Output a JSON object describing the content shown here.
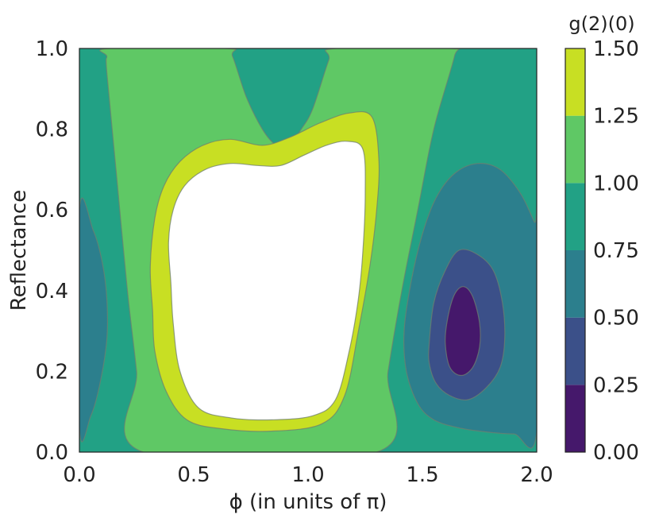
{
  "chart_data": {
    "type": "contour",
    "xlabel": "ϕ (in units of π)",
    "ylabel": "Reflectance",
    "xlim": [
      0.0,
      2.0
    ],
    "ylim": [
      0.0,
      1.0
    ],
    "x_ticks": [
      "0.0",
      "0.5",
      "1.0",
      "1.5",
      "2.0"
    ],
    "y_ticks": [
      "0.0",
      "0.2",
      "0.4",
      "0.6",
      "0.8",
      "1.0"
    ],
    "colorbar": {
      "title": "g(2)(0)",
      "tick_labels": [
        "0.00",
        "0.25",
        "0.50",
        "0.75",
        "1.00",
        "1.25",
        "1.50"
      ],
      "levels": [
        0.0,
        0.25,
        0.5,
        0.75,
        1.0,
        1.25,
        1.5
      ],
      "colors": [
        "#45186b",
        "#3b5089",
        "#2c7f8d",
        "#22a185",
        "#5fc865",
        "#c8df23"
      ],
      "over_color": "#ffffff"
    },
    "regions": [
      {
        "level_range": [
          0.75,
          1.0
        ],
        "points": [
          [
            0.0,
            0.0
          ],
          [
            2.0,
            0.0
          ],
          [
            2.0,
            1.0
          ],
          [
            0.0,
            1.0
          ]
        ]
      },
      {
        "level_range": [
          1.0,
          1.25
        ],
        "points": [
          [
            0.28,
            0.0
          ],
          [
            1.3,
            0.0
          ],
          [
            1.35,
            0.2
          ],
          [
            1.41,
            0.4
          ],
          [
            1.48,
            0.6
          ],
          [
            1.55,
            0.8
          ],
          [
            1.64,
            0.98
          ],
          [
            1.63,
            1.0
          ],
          [
            1.12,
            1.0
          ],
          [
            1.09,
            0.97
          ],
          [
            1.02,
            0.85
          ],
          [
            0.97,
            0.8
          ],
          [
            0.91,
            0.755
          ],
          [
            0.86,
            0.76
          ],
          [
            0.8,
            0.8
          ],
          [
            0.73,
            0.88
          ],
          [
            0.67,
            0.98
          ],
          [
            0.64,
            1.0
          ],
          [
            0.13,
            1.0
          ],
          [
            0.12,
            0.98
          ],
          [
            0.12,
            0.94
          ],
          [
            0.16,
            0.7
          ],
          [
            0.21,
            0.4
          ],
          [
            0.25,
            0.2
          ]
        ]
      },
      {
        "level_range": [
          1.25,
          1.5
        ],
        "points": [
          [
            0.32,
            0.35
          ],
          [
            0.31,
            0.46
          ],
          [
            0.33,
            0.58
          ],
          [
            0.37,
            0.66
          ],
          [
            0.44,
            0.72
          ],
          [
            0.54,
            0.76
          ],
          [
            0.66,
            0.775
          ],
          [
            0.8,
            0.76
          ],
          [
            0.92,
            0.78
          ],
          [
            1.05,
            0.815
          ],
          [
            1.18,
            0.84
          ],
          [
            1.28,
            0.83
          ],
          [
            1.31,
            0.72
          ],
          [
            1.3,
            0.6
          ],
          [
            1.27,
            0.46
          ],
          [
            1.22,
            0.3
          ],
          [
            1.16,
            0.14
          ],
          [
            1.06,
            0.07
          ],
          [
            0.84,
            0.052
          ],
          [
            0.62,
            0.058
          ],
          [
            0.47,
            0.08
          ],
          [
            0.38,
            0.15
          ],
          [
            0.33,
            0.25
          ]
        ]
      },
      {
        "level_range": [
          1.5,
          null
        ],
        "points": [
          [
            0.4,
            0.42
          ],
          [
            0.39,
            0.52
          ],
          [
            0.41,
            0.6
          ],
          [
            0.46,
            0.66
          ],
          [
            0.55,
            0.7
          ],
          [
            0.66,
            0.715
          ],
          [
            0.78,
            0.71
          ],
          [
            0.88,
            0.71
          ],
          [
            0.98,
            0.735
          ],
          [
            1.08,
            0.76
          ],
          [
            1.17,
            0.77
          ],
          [
            1.24,
            0.75
          ],
          [
            1.25,
            0.64
          ],
          [
            1.24,
            0.5
          ],
          [
            1.22,
            0.38
          ],
          [
            1.18,
            0.25
          ],
          [
            1.12,
            0.13
          ],
          [
            1.02,
            0.09
          ],
          [
            0.84,
            0.08
          ],
          [
            0.66,
            0.085
          ],
          [
            0.52,
            0.11
          ],
          [
            0.44,
            0.2
          ],
          [
            0.41,
            0.32
          ]
        ]
      },
      {
        "level_range": [
          0.5,
          0.75
        ],
        "points": [
          [
            0.0,
            0.06
          ],
          [
            0.05,
            0.09
          ],
          [
            0.09,
            0.17
          ],
          [
            0.12,
            0.28
          ],
          [
            0.12,
            0.38
          ],
          [
            0.1,
            0.47
          ],
          [
            0.06,
            0.55
          ],
          [
            0.0,
            0.6
          ]
        ]
      },
      {
        "level_range": [
          0.5,
          0.75
        ],
        "points": [
          [
            1.42,
            0.3
          ],
          [
            1.45,
            0.42
          ],
          [
            1.5,
            0.54
          ],
          [
            1.56,
            0.63
          ],
          [
            1.64,
            0.69
          ],
          [
            1.74,
            0.715
          ],
          [
            1.84,
            0.7
          ],
          [
            1.93,
            0.64
          ],
          [
            1.99,
            0.57
          ],
          [
            2.0,
            0.57
          ],
          [
            2.0,
            0.05
          ],
          [
            1.9,
            0.045
          ],
          [
            1.78,
            0.05
          ],
          [
            1.66,
            0.06
          ],
          [
            1.55,
            0.08
          ],
          [
            1.48,
            0.12
          ],
          [
            1.43,
            0.2
          ]
        ]
      },
      {
        "level_range": [
          0.25,
          0.5
        ],
        "points": [
          [
            1.53,
            0.27
          ],
          [
            1.55,
            0.37
          ],
          [
            1.6,
            0.45
          ],
          [
            1.66,
            0.5
          ],
          [
            1.74,
            0.49
          ],
          [
            1.81,
            0.45
          ],
          [
            1.85,
            0.37
          ],
          [
            1.86,
            0.28
          ],
          [
            1.84,
            0.21
          ],
          [
            1.78,
            0.16
          ],
          [
            1.7,
            0.13
          ],
          [
            1.62,
            0.14
          ],
          [
            1.56,
            0.17
          ],
          [
            1.53,
            0.22
          ]
        ]
      },
      {
        "level_range": [
          0.0,
          0.25
        ],
        "points": [
          [
            1.6,
            0.27
          ],
          [
            1.61,
            0.33
          ],
          [
            1.64,
            0.39
          ],
          [
            1.68,
            0.41
          ],
          [
            1.72,
            0.385
          ],
          [
            1.75,
            0.32
          ],
          [
            1.75,
            0.26
          ],
          [
            1.72,
            0.21
          ],
          [
            1.67,
            0.19
          ],
          [
            1.62,
            0.21
          ]
        ]
      }
    ]
  }
}
